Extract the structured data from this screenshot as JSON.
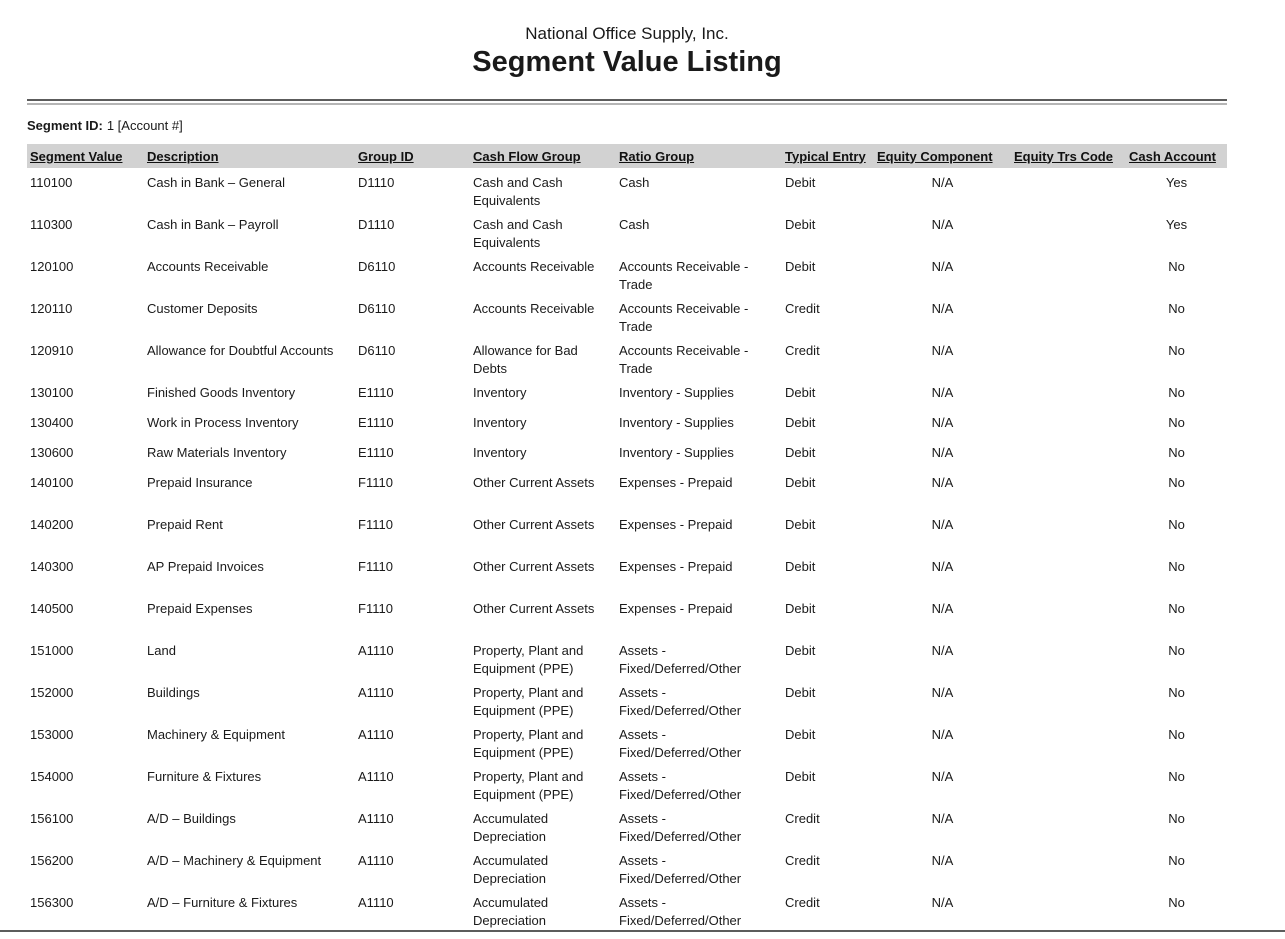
{
  "report": {
    "company_name": "National Office Supply, Inc.",
    "title": "Segment Value Listing",
    "segment_id_label": "Segment ID:",
    "segment_id_value": "1 [Account #]"
  },
  "colors": {
    "header_row_bg": "#d2d2d2",
    "text": "#1a1a1a",
    "rule_dark": "#5c5c5c",
    "rule_light": "#b5b5b5"
  },
  "table": {
    "columns": [
      {
        "key": "segment_value",
        "label": "Segment Value"
      },
      {
        "key": "description",
        "label": "Description"
      },
      {
        "key": "group_id",
        "label": "Group ID"
      },
      {
        "key": "cash_flow_group",
        "label": "Cash Flow Group"
      },
      {
        "key": "ratio_group",
        "label": "Ratio Group"
      },
      {
        "key": "typical_entry",
        "label": "Typical Entry"
      },
      {
        "key": "equity_component",
        "label": "Equity Component"
      },
      {
        "key": "equity_trs_code",
        "label": "Equity Trs Code"
      },
      {
        "key": "cash_account",
        "label": "Cash Account"
      }
    ],
    "rows": [
      {
        "segment_value": "110100",
        "description": "Cash in Bank – General",
        "group_id": "D1110",
        "cash_flow_group": "Cash and Cash Equivalents",
        "ratio_group": "Cash",
        "typical_entry": "Debit",
        "equity_component": "N/A",
        "equity_trs_code": "",
        "cash_account": "Yes"
      },
      {
        "segment_value": "110300",
        "description": "Cash in Bank – Payroll",
        "group_id": "D1110",
        "cash_flow_group": "Cash and Cash Equivalents",
        "ratio_group": "Cash",
        "typical_entry": "Debit",
        "equity_component": "N/A",
        "equity_trs_code": "",
        "cash_account": "Yes"
      },
      {
        "segment_value": "120100",
        "description": "Accounts Receivable",
        "group_id": "D6110",
        "cash_flow_group": "Accounts Receivable",
        "ratio_group": "Accounts Receivable - Trade",
        "typical_entry": "Debit",
        "equity_component": "N/A",
        "equity_trs_code": "",
        "cash_account": "No"
      },
      {
        "segment_value": "120110",
        "description": "Customer Deposits",
        "group_id": "D6110",
        "cash_flow_group": "Accounts Receivable",
        "ratio_group": "Accounts Receivable - Trade",
        "typical_entry": "Credit",
        "equity_component": "N/A",
        "equity_trs_code": "",
        "cash_account": "No"
      },
      {
        "segment_value": "120910",
        "description": "Allowance for Doubtful Accounts",
        "group_id": "D6110",
        "cash_flow_group": "Allowance for Bad Debts",
        "ratio_group": "Accounts Receivable - Trade",
        "typical_entry": "Credit",
        "equity_component": "N/A",
        "equity_trs_code": "",
        "cash_account": "No"
      },
      {
        "segment_value": "130100",
        "description": "Finished Goods Inventory",
        "group_id": "E1110",
        "cash_flow_group": "Inventory",
        "ratio_group": "Inventory - Supplies",
        "typical_entry": "Debit",
        "equity_component": "N/A",
        "equity_trs_code": "",
        "cash_account": "No"
      },
      {
        "segment_value": "130400",
        "description": "Work in Process Inventory",
        "group_id": "E1110",
        "cash_flow_group": "Inventory",
        "ratio_group": "Inventory - Supplies",
        "typical_entry": "Debit",
        "equity_component": "N/A",
        "equity_trs_code": "",
        "cash_account": "No"
      },
      {
        "segment_value": "130600",
        "description": "Raw Materials Inventory",
        "group_id": "E1110",
        "cash_flow_group": "Inventory",
        "ratio_group": "Inventory - Supplies",
        "typical_entry": "Debit",
        "equity_component": "N/A",
        "equity_trs_code": "",
        "cash_account": "No"
      },
      {
        "segment_value": "140100",
        "description": "Prepaid Insurance",
        "group_id": "F1110",
        "cash_flow_group": "Other Current Assets",
        "ratio_group": "Expenses - Prepaid",
        "typical_entry": "Debit",
        "equity_component": "N/A",
        "equity_trs_code": "",
        "cash_account": "No"
      },
      {
        "segment_value": "140200",
        "description": "Prepaid Rent",
        "group_id": "F1110",
        "cash_flow_group": "Other Current Assets",
        "ratio_group": "Expenses - Prepaid",
        "typical_entry": "Debit",
        "equity_component": "N/A",
        "equity_trs_code": "",
        "cash_account": "No"
      },
      {
        "segment_value": "140300",
        "description": "AP Prepaid Invoices",
        "group_id": "F1110",
        "cash_flow_group": "Other Current Assets",
        "ratio_group": "Expenses - Prepaid",
        "typical_entry": "Debit",
        "equity_component": "N/A",
        "equity_trs_code": "",
        "cash_account": "No"
      },
      {
        "segment_value": "140500",
        "description": "Prepaid Expenses",
        "group_id": "F1110",
        "cash_flow_group": "Other Current Assets",
        "ratio_group": "Expenses - Prepaid",
        "typical_entry": "Debit",
        "equity_component": "N/A",
        "equity_trs_code": "",
        "cash_account": "No"
      },
      {
        "segment_value": "151000",
        "description": "Land",
        "group_id": "A1110",
        "cash_flow_group": "Property, Plant and Equipment (PPE)",
        "ratio_group": "Assets - Fixed/Deferred/Other",
        "typical_entry": "Debit",
        "equity_component": "N/A",
        "equity_trs_code": "",
        "cash_account": "No"
      },
      {
        "segment_value": "152000",
        "description": "Buildings",
        "group_id": "A1110",
        "cash_flow_group": "Property, Plant and Equipment (PPE)",
        "ratio_group": "Assets - Fixed/Deferred/Other",
        "typical_entry": "Debit",
        "equity_component": "N/A",
        "equity_trs_code": "",
        "cash_account": "No"
      },
      {
        "segment_value": "153000",
        "description": "Machinery & Equipment",
        "group_id": "A1110",
        "cash_flow_group": "Property, Plant and Equipment (PPE)",
        "ratio_group": "Assets - Fixed/Deferred/Other",
        "typical_entry": "Debit",
        "equity_component": "N/A",
        "equity_trs_code": "",
        "cash_account": "No"
      },
      {
        "segment_value": "154000",
        "description": "Furniture & Fixtures",
        "group_id": "A1110",
        "cash_flow_group": "Property, Plant and Equipment (PPE)",
        "ratio_group": "Assets - Fixed/Deferred/Other",
        "typical_entry": "Debit",
        "equity_component": "N/A",
        "equity_trs_code": "",
        "cash_account": "No"
      },
      {
        "segment_value": "156100",
        "description": "A/D – Buildings",
        "group_id": "A1110",
        "cash_flow_group": "Accumulated Depreciation",
        "ratio_group": "Assets - Fixed/Deferred/Other",
        "typical_entry": "Credit",
        "equity_component": "N/A",
        "equity_trs_code": "",
        "cash_account": "No"
      },
      {
        "segment_value": "156200",
        "description": "A/D – Machinery & Equipment",
        "group_id": "A1110",
        "cash_flow_group": "Accumulated Depreciation",
        "ratio_group": "Assets - Fixed/Deferred/Other",
        "typical_entry": "Credit",
        "equity_component": "N/A",
        "equity_trs_code": "",
        "cash_account": "No"
      },
      {
        "segment_value": "156300",
        "description": "A/D – Furniture & Fixtures",
        "group_id": "A1110",
        "cash_flow_group": "Accumulated Depreciation",
        "ratio_group": "Assets - Fixed/Deferred/Other",
        "typical_entry": "Credit",
        "equity_component": "N/A",
        "equity_trs_code": "",
        "cash_account": "No"
      }
    ]
  }
}
